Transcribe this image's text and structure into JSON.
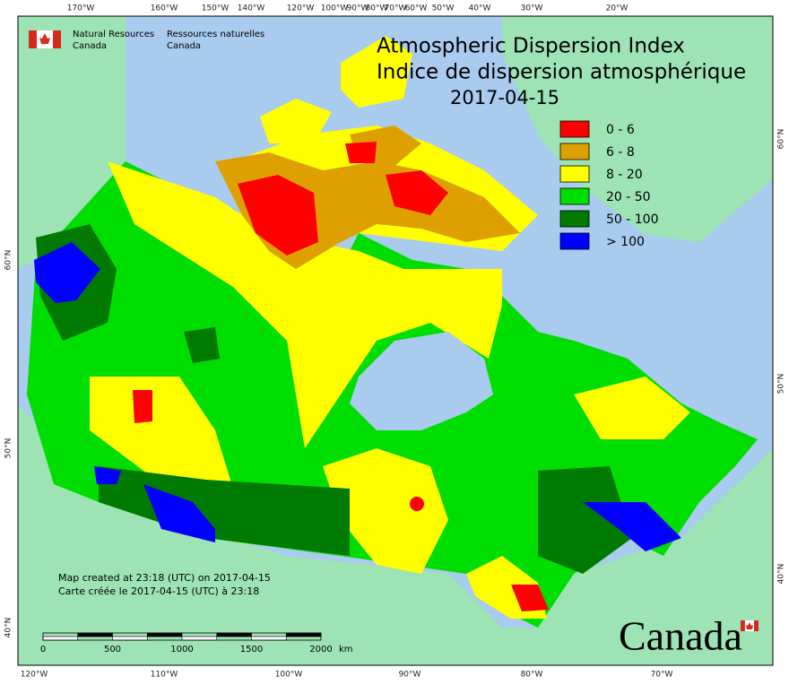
{
  "header": {
    "agency_en": "Natural Resources",
    "agency_en2": "Canada",
    "agency_fr": "Ressources naturelles",
    "agency_fr2": "Canada"
  },
  "title": {
    "en": "Atmospheric Dispersion Index",
    "fr": "Indice de dispersion atmosphérique",
    "date": "2017-04-15"
  },
  "legend": [
    {
      "label": "0 - 6",
      "color": "#ff0000"
    },
    {
      "label": "6 - 8",
      "color": "#dda000"
    },
    {
      "label": "8 - 20",
      "color": "#ffff00"
    },
    {
      "label": "20 - 50",
      "color": "#00dd00"
    },
    {
      "label": "50 - 100",
      "color": "#007a00"
    },
    {
      "label": "> 100",
      "color": "#0000ff"
    }
  ],
  "graticule": {
    "top": [
      "170°W",
      "160°W",
      "150°W",
      "140°W",
      "120°W",
      "100°W",
      "90°W",
      "80°W",
      "70°W",
      "60°W",
      "50°W",
      "40°W",
      "30°W",
      "20°W"
    ],
    "bottom": [
      "120°W",
      "110°W",
      "100°W",
      "90°W",
      "80°W",
      "70°W"
    ],
    "left": [
      "60°N",
      "50°N",
      "40°N"
    ],
    "right": [
      "60°N",
      "50°N",
      "40°N"
    ]
  },
  "notes": [
    "Map created at 23:18 (UTC) on 2017-04-15",
    "Carte créée le 2017-04-15 (UTC) à 23:18"
  ],
  "scale_bar": {
    "labels": [
      "0",
      "500",
      "1000",
      "1500",
      "2000"
    ],
    "unit": "km"
  },
  "wordmark": "Canada"
}
